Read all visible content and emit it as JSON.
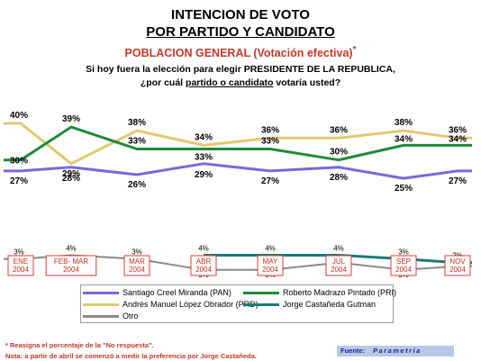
{
  "header": {
    "title_line1": "INTENCION DE VOTO",
    "title_line2": "POR PARTIDO Y CANDIDATO",
    "subtitle": "POBLACION GENERAL (Votación efectiva)",
    "subtitle_mark": "*",
    "question_line1": "Si hoy fuera la elección para elegir PRESIDENTE DE LA REPUBLICA,",
    "question_line2_pre": "¿por cuál ",
    "question_line2_underlined": "partido o candidato",
    "question_line2_post": "  votaría usted?"
  },
  "chart_data": {
    "type": "line",
    "categories": [
      "ENE 2004",
      "FEB- MAR 2004",
      "MAR 2004",
      "ABR 2004",
      "MAY 2004",
      "JUL 2004",
      "SEP 2004",
      "NOV 2004"
    ],
    "series": [
      {
        "name": "Santiago Creel Miranda (PAN)",
        "color": "#7b68d8",
        "values": [
          27,
          28,
          26,
          29,
          27,
          28,
          25,
          27
        ]
      },
      {
        "name": "Roberto Madrazo Pintado (PRI)",
        "color": "#1e8c3a",
        "values": [
          30,
          39,
          33,
          33,
          33,
          30,
          34,
          34
        ]
      },
      {
        "name": "Andrés Manuel López Obrador (PRD)",
        "color": "#e0c870",
        "values": [
          40,
          29,
          38,
          34,
          36,
          36,
          38,
          36
        ]
      },
      {
        "name": "Jorge Castañeda Gutman",
        "color": "#1a7a7a",
        "values": [
          null,
          null,
          null,
          4,
          4,
          4,
          3,
          2
        ]
      },
      {
        "name": "Otro",
        "color": "#8a8a8a",
        "values": [
          3,
          4,
          3,
          0,
          0,
          2,
          0,
          1
        ]
      }
    ],
    "value_labels": {
      "Santiago Creel Miranda (PAN)": [
        "27%",
        "28%",
        "26%",
        "29%",
        "27%",
        "28%",
        "25%",
        "27%"
      ],
      "Roberto Madrazo Pintado (PRI)": [
        "30%",
        "39%",
        "33%",
        "33%",
        "33%",
        "30%",
        "34%",
        "34%"
      ],
      "Andrés Manuel López Obrador (PRD)": [
        "40%",
        "29%",
        "38%",
        "34%",
        "36%",
        "36%",
        "38%",
        "36%"
      ],
      "Jorge Castañeda Gutman": [
        null,
        null,
        null,
        "4%",
        "4%",
        "4%",
        "3%",
        "2%"
      ],
      "Otro": [
        "3%",
        "4%",
        "3%",
        "0%",
        "0%",
        "2%",
        "0%",
        "1%"
      ]
    },
    "ylim": [
      0,
      45
    ],
    "grid": false,
    "legend_position": "bottom"
  },
  "notes": {
    "note1": "* Reasigna el porcentaje de la \"No respuesta\".",
    "note2": "Nota: a partir de abril se comenzó a medir la preferencia por Jorge Castañeda."
  },
  "source": {
    "label": "Fuente:",
    "value": "Parametría"
  }
}
